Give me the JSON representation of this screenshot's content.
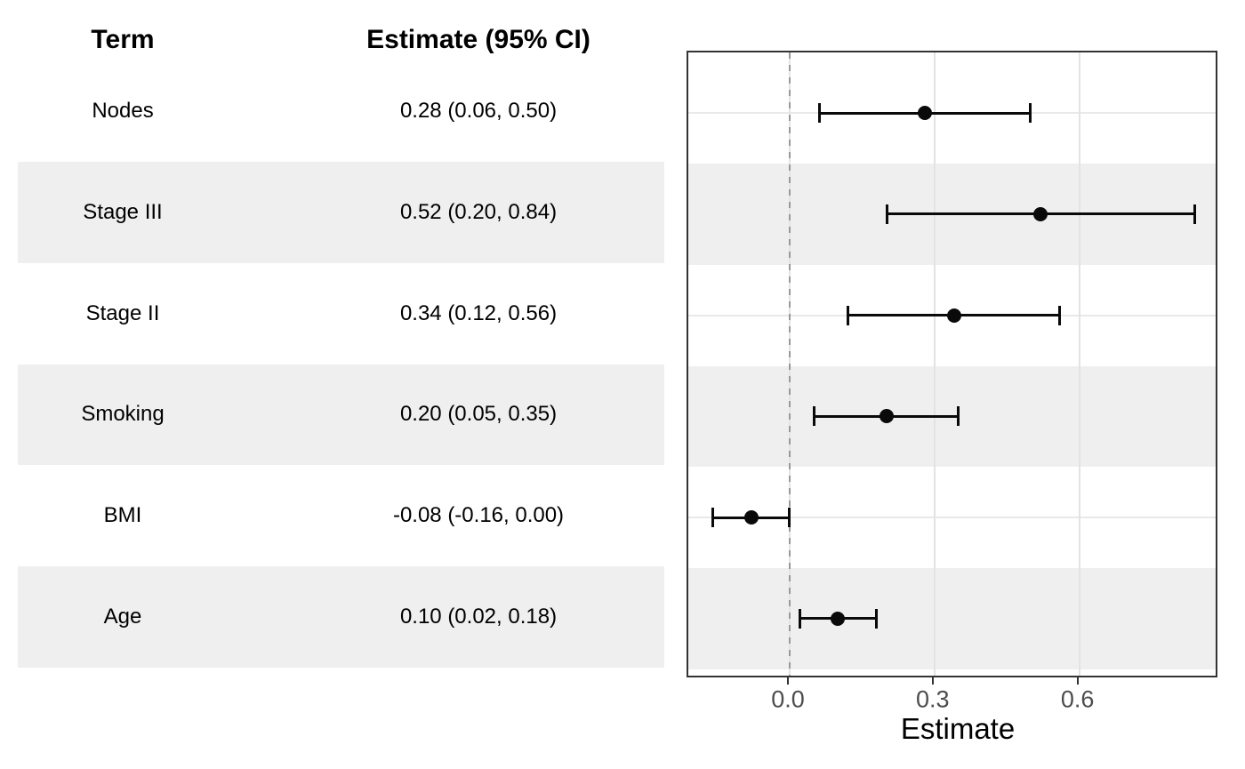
{
  "table": {
    "headers": {
      "term": "Term",
      "estimate": "Estimate (95% CI)"
    },
    "rows": [
      {
        "term": "Nodes",
        "estimate_label": "0.28 (0.06, 0.50)"
      },
      {
        "term": "Stage III",
        "estimate_label": "0.52 (0.20, 0.84)"
      },
      {
        "term": "Stage II",
        "estimate_label": "0.34 (0.12, 0.56)"
      },
      {
        "term": "Smoking",
        "estimate_label": "0.20 (0.05, 0.35)"
      },
      {
        "term": "BMI",
        "estimate_label": "-0.08 (-0.16, 0.00)"
      },
      {
        "term": "Age",
        "estimate_label": "0.10 (0.02, 0.18)"
      }
    ]
  },
  "chart_data": {
    "type": "scatter",
    "subtype": "forest-plot",
    "categories": [
      "Nodes",
      "Stage III",
      "Stage II",
      "Smoking",
      "BMI",
      "Age"
    ],
    "estimates": [
      0.28,
      0.52,
      0.34,
      0.2,
      -0.08,
      0.1
    ],
    "ci_lower": [
      0.06,
      0.2,
      0.12,
      0.05,
      -0.16,
      0.02
    ],
    "ci_upper": [
      0.5,
      0.84,
      0.56,
      0.35,
      0.0,
      0.18
    ],
    "xlabel": "Estimate",
    "ylabel": "",
    "x_ticks": [
      0.0,
      0.3,
      0.6
    ],
    "x_tick_labels": [
      "0.0",
      "0.3",
      "0.6"
    ],
    "xlim": [
      -0.21,
      0.89
    ],
    "reference_line": 0,
    "grid": "major x gridlines + one horizontal gridline per row",
    "legend": "none",
    "striped_rows": [
      1,
      3,
      5
    ]
  },
  "colors": {
    "stripe": "#efefef",
    "panel_border": "#333333",
    "grid_major": "#e3e3e3",
    "reference_line": "#999999",
    "marker": "#0a0a0a",
    "tick_label": "#4d4d4d",
    "text": "#000000"
  }
}
